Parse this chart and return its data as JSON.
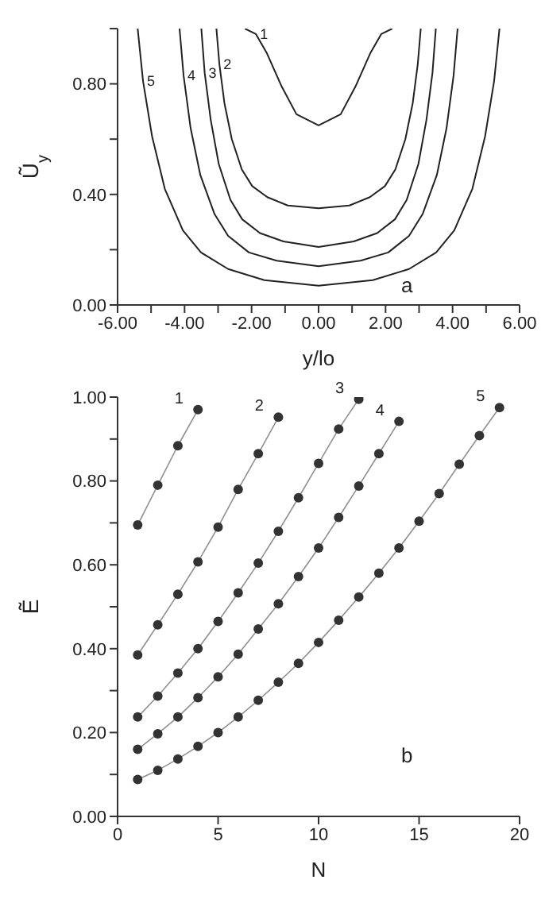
{
  "chart_data": [
    {
      "type": "line",
      "xlabel": "y/lo",
      "ylabel": "Ũ$_{y}$",
      "annotations": [
        "a"
      ],
      "marker": "none",
      "line_style": "solid",
      "grid": false,
      "legend": false,
      "xlim": [
        -6,
        6
      ],
      "xticks": [
        {
          "value": -6,
          "label": "-6.00"
        },
        {
          "value": -5,
          "label": null
        },
        {
          "value": -4,
          "label": "-4.00"
        },
        {
          "value": -3,
          "label": null
        },
        {
          "value": -2,
          "label": "-2.00"
        },
        {
          "value": -1,
          "label": null
        },
        {
          "value": 0,
          "label": "0.00"
        },
        {
          "value": 1,
          "label": null
        },
        {
          "value": 2,
          "label": "2.00"
        },
        {
          "value": 3,
          "label": null
        },
        {
          "value": 4,
          "label": "4.00"
        },
        {
          "value": 5,
          "label": null
        },
        {
          "value": 6,
          "label": "6.00"
        }
      ],
      "ylim": [
        0,
        1
      ],
      "yticks": [
        {
          "value": 0,
          "label": "0.00"
        },
        {
          "value": 0.2,
          "label": null
        },
        {
          "value": 0.4,
          "label": "0.40"
        },
        {
          "value": 0.6,
          "label": null
        },
        {
          "value": 0.8,
          "label": "0.80"
        },
        {
          "value": 1,
          "label": null
        }
      ],
      "series": [
        {
          "name": "1",
          "color": "#222222",
          "x": [
            -2.2,
            -1.87,
            -1.54,
            -1.1,
            -0.66,
            0,
            0.66,
            1.1,
            1.54,
            1.87,
            2.2
          ],
          "values": [
            1.0,
            0.98,
            0.91,
            0.79,
            0.69,
            0.65,
            0.69,
            0.79,
            0.91,
            0.98,
            1.0
          ]
        },
        {
          "name": "2",
          "color": "#222222",
          "x": [
            -3.05,
            -2.96,
            -2.81,
            -2.59,
            -2.29,
            -1.98,
            -1.53,
            -0.92,
            0,
            0.92,
            1.53,
            1.98,
            2.29,
            2.59,
            2.81,
            2.96,
            3.05
          ],
          "values": [
            1.0,
            0.87,
            0.73,
            0.6,
            0.49,
            0.43,
            0.39,
            0.36,
            0.35,
            0.36,
            0.39,
            0.43,
            0.49,
            0.6,
            0.73,
            0.87,
            1.0
          ]
        },
        {
          "name": "3",
          "color": "#222222",
          "x": [
            -3.5,
            -3.4,
            -3.22,
            -2.98,
            -2.63,
            -2.28,
            -1.75,
            -1.05,
            0,
            1.05,
            1.75,
            2.28,
            2.63,
            2.98,
            3.22,
            3.4,
            3.5
          ],
          "values": [
            1.0,
            0.84,
            0.67,
            0.51,
            0.38,
            0.31,
            0.26,
            0.23,
            0.21,
            0.23,
            0.26,
            0.31,
            0.38,
            0.51,
            0.67,
            0.84,
            1.0
          ]
        },
        {
          "name": "4",
          "color": "#222222",
          "x": [
            -4.15,
            -4.03,
            -3.82,
            -3.53,
            -3.11,
            -2.7,
            -2.08,
            -1.25,
            0,
            1.25,
            2.08,
            2.7,
            3.11,
            3.53,
            3.82,
            4.03,
            4.15
          ],
          "values": [
            1.0,
            0.83,
            0.64,
            0.47,
            0.33,
            0.25,
            0.19,
            0.16,
            0.14,
            0.16,
            0.19,
            0.25,
            0.33,
            0.47,
            0.64,
            0.83,
            1.0
          ]
        },
        {
          "name": "5",
          "color": "#222222",
          "x": [
            -5.4,
            -5.24,
            -4.97,
            -4.59,
            -4.05,
            -3.51,
            -2.7,
            -1.62,
            0,
            1.62,
            2.7,
            3.51,
            4.05,
            4.59,
            4.97,
            5.24,
            5.4
          ],
          "values": [
            1.0,
            0.81,
            0.61,
            0.42,
            0.27,
            0.19,
            0.13,
            0.09,
            0.07,
            0.09,
            0.13,
            0.19,
            0.27,
            0.42,
            0.61,
            0.81,
            1.0
          ]
        }
      ]
    },
    {
      "type": "line",
      "xlabel": "N",
      "ylabel": "Ẽ",
      "annotations": [
        "b"
      ],
      "marker": "circle",
      "line_style": "solid",
      "grid": false,
      "legend": false,
      "xlim": [
        0,
        20
      ],
      "xticks": [
        0,
        5,
        10,
        15,
        20
      ],
      "ylim": [
        0,
        1
      ],
      "yticks": [
        {
          "value": 0,
          "label": "0.00"
        },
        {
          "value": 0.1,
          "label": null
        },
        {
          "value": 0.2,
          "label": "0.20"
        },
        {
          "value": 0.3,
          "label": null
        },
        {
          "value": 0.4,
          "label": "0.40"
        },
        {
          "value": 0.5,
          "label": null
        },
        {
          "value": 0.6,
          "label": "0.60"
        },
        {
          "value": 0.7,
          "label": null
        },
        {
          "value": 0.8,
          "label": "0.80"
        },
        {
          "value": 0.9,
          "label": null
        },
        {
          "value": 1,
          "label": "1.00"
        }
      ],
      "series": [
        {
          "name": "1",
          "color": "#333333",
          "x": [
            1,
            2,
            3,
            4
          ],
          "values": [
            0.695,
            0.79,
            0.884,
            0.97
          ]
        },
        {
          "name": "2",
          "color": "#333333",
          "x": [
            1,
            2,
            3,
            4,
            5,
            6,
            7,
            8
          ],
          "values": [
            0.385,
            0.457,
            0.53,
            0.607,
            0.69,
            0.78,
            0.865,
            0.952
          ]
        },
        {
          "name": "3",
          "color": "#333333",
          "x": [
            1,
            2,
            3,
            4,
            5,
            6,
            7,
            8,
            9,
            10,
            11,
            12
          ],
          "values": [
            0.237,
            0.287,
            0.342,
            0.4,
            0.465,
            0.533,
            0.604,
            0.68,
            0.76,
            0.842,
            0.924,
            0.995
          ]
        },
        {
          "name": "4",
          "color": "#333333",
          "x": [
            1,
            2,
            3,
            4,
            5,
            6,
            7,
            8,
            9,
            10,
            11,
            12,
            13,
            14
          ],
          "values": [
            0.16,
            0.197,
            0.237,
            0.283,
            0.333,
            0.387,
            0.447,
            0.507,
            0.572,
            0.64,
            0.713,
            0.788,
            0.865,
            0.942
          ]
        },
        {
          "name": "5",
          "color": "#333333",
          "x": [
            1,
            2,
            3,
            4,
            5,
            6,
            7,
            8,
            9,
            10,
            11,
            12,
            13,
            14,
            15,
            16,
            17,
            18,
            19
          ],
          "values": [
            0.088,
            0.11,
            0.137,
            0.167,
            0.2,
            0.237,
            0.277,
            0.32,
            0.365,
            0.415,
            0.468,
            0.523,
            0.58,
            0.64,
            0.704,
            0.77,
            0.84,
            0.908,
            0.975
          ]
        }
      ]
    }
  ]
}
